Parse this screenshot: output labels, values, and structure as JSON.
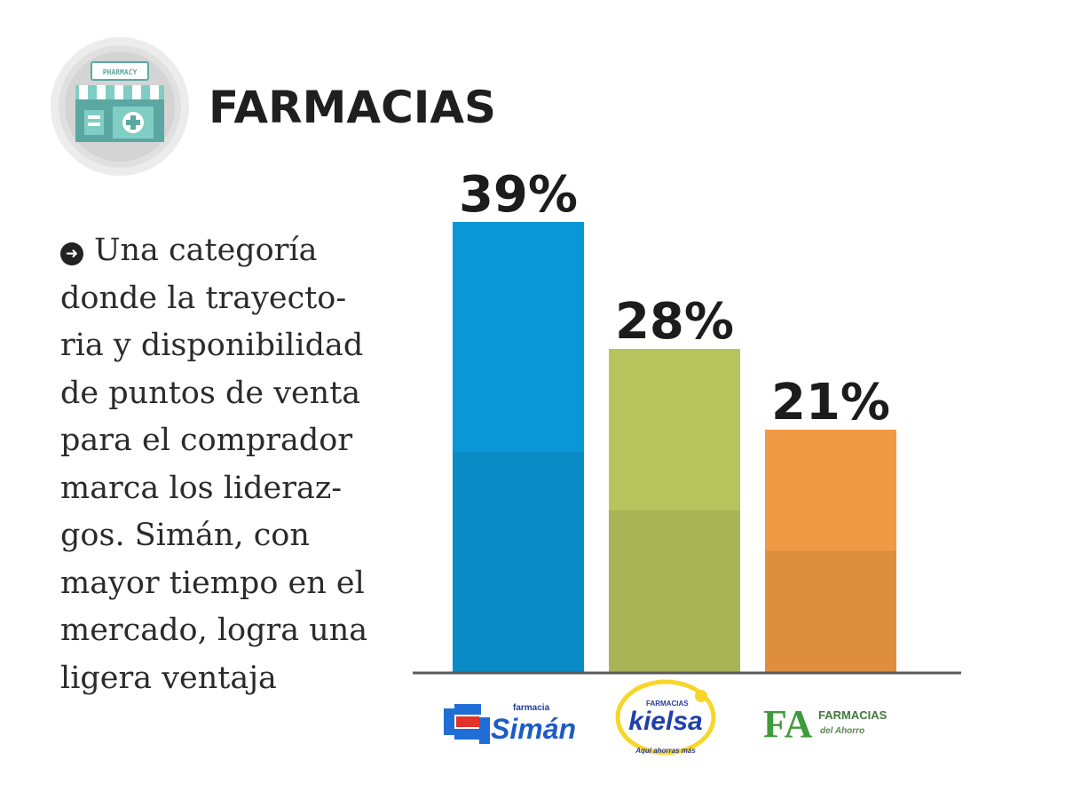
{
  "header": {
    "title": "FARMACIAS",
    "icon_sign_text": "PHARMACY"
  },
  "description": {
    "lines": [
      "Una categoría",
      "donde la trayecto-",
      "ria y disponibilidad",
      "de puntos de venta",
      "para el comprador",
      "marca los lideraz-",
      "gos. Simán, con",
      "mayor tiempo en el",
      "mercado, logra una",
      "ligera ventaja"
    ]
  },
  "chart_data": {
    "type": "bar",
    "categories": [
      "Farmacia Simán",
      "Farmacias Kielsa",
      "Farmacias del Ahorro"
    ],
    "values": [
      39,
      28,
      21
    ],
    "value_labels": [
      "39%",
      "28%",
      "21%"
    ],
    "colors": [
      "#0a97d6",
      "#b7c45e",
      "#f19a45"
    ],
    "ylim": [
      0,
      39
    ],
    "grid": false,
    "legend": "none"
  },
  "logos": {
    "siman": {
      "top": "farmacia",
      "main": "Simán"
    },
    "kielsa": {
      "top": "FARMACIAS",
      "main": "kielsa",
      "tagline": "Aquí ahorras más"
    },
    "ahorro": {
      "main": "FA",
      "line1": "FARMACIAS",
      "line2": "del Ahorro"
    }
  }
}
